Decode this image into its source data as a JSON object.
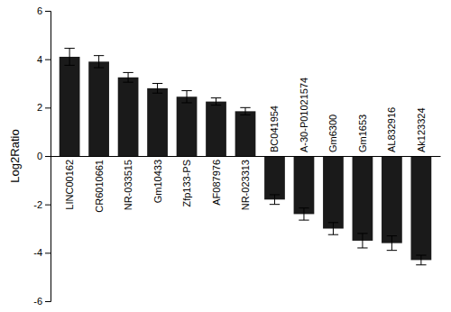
{
  "chart_data": {
    "type": "bar",
    "categories": [
      "LINC00162",
      "CR6010661",
      "NR-033515",
      "Gm10433",
      "Zfp133-PS",
      "AF087976",
      "NR-023313",
      "BC041954",
      "A-30-P01021574",
      "Gm6300",
      "Gm1653",
      "AL832916",
      "Ak123324"
    ],
    "values": [
      4.1,
      3.9,
      3.25,
      2.8,
      2.45,
      2.25,
      1.85,
      -1.8,
      -2.4,
      -3.0,
      -3.5,
      -3.6,
      -4.3
    ],
    "errors": [
      0.35,
      0.25,
      0.2,
      0.2,
      0.25,
      0.15,
      0.15,
      0.2,
      0.25,
      0.25,
      0.3,
      0.3,
      0.2
    ],
    "color": "#1a1a1a",
    "ylabel": "Log2Ratio",
    "ylim": [
      -6,
      6
    ],
    "yticks": [
      -6,
      -4,
      -2,
      0,
      2,
      4,
      6
    ]
  }
}
